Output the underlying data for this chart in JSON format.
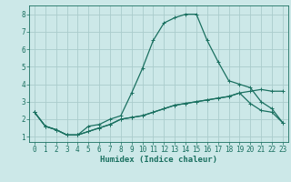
{
  "title": "",
  "xlabel": "Humidex (Indice chaleur)",
  "ylabel": "",
  "bg_color": "#cce8e8",
  "grid_color": "#aacccc",
  "line_color": "#1a7060",
  "xlim": [
    -0.5,
    23.5
  ],
  "ylim": [
    0.7,
    8.5
  ],
  "xticks": [
    0,
    1,
    2,
    3,
    4,
    5,
    6,
    7,
    8,
    9,
    10,
    11,
    12,
    13,
    14,
    15,
    16,
    17,
    18,
    19,
    20,
    21,
    22,
    23
  ],
  "yticks": [
    1,
    2,
    3,
    4,
    5,
    6,
    7,
    8
  ],
  "line1_y": [
    2.4,
    1.6,
    1.4,
    1.1,
    1.1,
    1.3,
    1.5,
    1.7,
    2.0,
    2.1,
    2.2,
    2.4,
    2.6,
    2.8,
    2.9,
    3.0,
    3.1,
    3.2,
    3.3,
    3.5,
    3.6,
    3.7,
    3.6,
    3.6
  ],
  "line2_y": [
    2.4,
    1.6,
    1.4,
    1.1,
    1.1,
    1.6,
    1.7,
    2.0,
    2.2,
    3.5,
    4.9,
    6.5,
    7.5,
    7.8,
    8.0,
    8.0,
    6.5,
    5.3,
    4.2,
    4.0,
    3.8,
    3.0,
    2.6,
    1.8
  ],
  "line3_y": [
    2.4,
    1.6,
    1.4,
    1.1,
    1.1,
    1.3,
    1.5,
    1.7,
    2.0,
    2.1,
    2.2,
    2.4,
    2.6,
    2.8,
    2.9,
    3.0,
    3.1,
    3.2,
    3.3,
    3.5,
    2.9,
    2.5,
    2.4,
    1.8
  ],
  "xlabel_fontsize": 6.5,
  "tick_fontsize": 5.5,
  "line_width": 0.9,
  "marker_size": 2.5
}
